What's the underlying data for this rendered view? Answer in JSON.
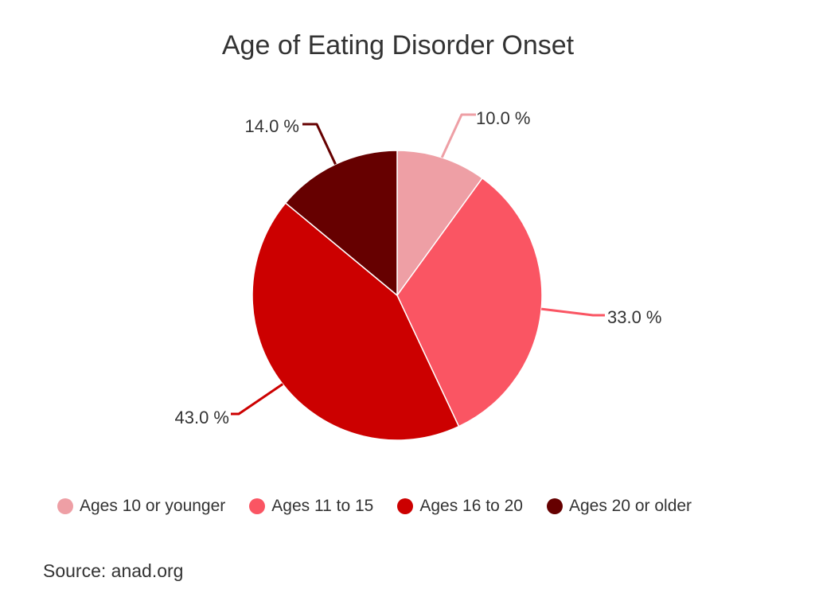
{
  "chart_data": {
    "type": "pie",
    "title": "Age of Eating Disorder Onset",
    "categories": [
      "Ages 10 or younger",
      "Ages 11 to 15",
      "Ages 16 to 20",
      "Ages 20 or older"
    ],
    "values": [
      10.0,
      33.0,
      43.0,
      14.0
    ],
    "value_labels": [
      "10.0 %",
      "33.0 %",
      "43.0 %",
      "14.0 %"
    ],
    "colors": [
      "#ee9fa5",
      "#fa5563",
      "#cc0000",
      "#660000"
    ],
    "legend_placement": "bottom"
  },
  "source": "Source: anad.org"
}
